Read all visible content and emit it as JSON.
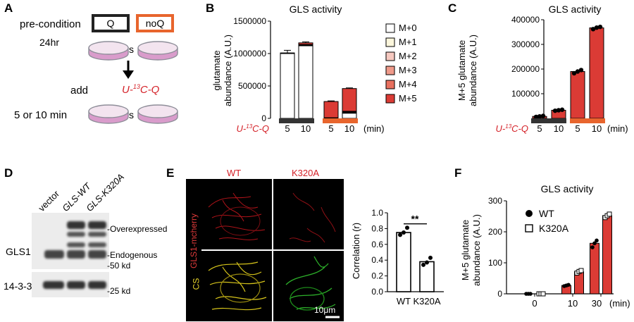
{
  "panels": {
    "A": "A",
    "B": "B",
    "C": "C",
    "D": "D",
    "E": "E",
    "F": "F"
  },
  "panelA": {
    "precondition": "pre-condition",
    "duration1": "24hr",
    "q_box": "Q",
    "noq_box": "noQ",
    "vs": "vs",
    "add": "add",
    "tracer": "U-13C-Q",
    "duration2": "5 or 10 min"
  },
  "panelB": {
    "title": "GLS activity",
    "ylabel_line1": "glutamate",
    "ylabel_line2": "abundance (A.U.)",
    "xrow_label": "U-13C-Q",
    "unit": "(min)",
    "colors": {
      "M+0": "#ffffff",
      "M+1": "#fbf6dc",
      "M+2": "#f6c9c0",
      "M+3": "#ef9a8a",
      "M+4": "#e8705f",
      "M+5": "#db3b35",
      "Q": "#333333",
      "noQ": "#e8652d"
    }
  },
  "panelC": {
    "title": "GLS activity",
    "ylabel_line1": "M+5 glutamate",
    "ylabel_line2": "abundance (A.U.)",
    "xrow_label": "U-13C-Q",
    "unit": "(min)"
  },
  "panelD": {
    "lanes": [
      "vector",
      "GLS-WT",
      "GLS-K320A"
    ],
    "row1": "GLS1",
    "row2": "14-3-3",
    "band_over": "-Overexpressed",
    "band_endo": "-Endogenous",
    "mw1": "-50 kd",
    "mw2": "-25 kd"
  },
  "panelE": {
    "col_wt": "WT",
    "col_k": "K320A",
    "row1": "GLS1-mcherry",
    "row2": "CS",
    "scale": "10μm",
    "ylabel": "Correlation (r)",
    "sig": "**"
  },
  "panelF": {
    "title": "GLS activity",
    "ylabel_line1": "M+5 glutamate",
    "ylabel_line2": "abundance (A.U.)",
    "unit": "(min)"
  },
  "chart_data": [
    {
      "id": "B",
      "type": "bar",
      "title": "GLS activity",
      "ylabel": "glutamate abundance (A.U.)",
      "xlabel": "U-13C-Q",
      "stacked": true,
      "categories": [
        "5",
        "10",
        "5",
        "10"
      ],
      "groups": [
        "Q",
        "Q",
        "noQ",
        "noQ"
      ],
      "ylim": [
        0,
        1500000
      ],
      "yticks": [
        0,
        500000,
        1000000,
        1500000
      ],
      "series": [
        {
          "name": "M+0",
          "values": [
            1000000,
            1120000,
            0,
            80000
          ]
        },
        {
          "name": "M+1",
          "values": [
            0,
            10000,
            0,
            10000
          ]
        },
        {
          "name": "M+2",
          "values": [
            0,
            10000,
            0,
            10000
          ]
        },
        {
          "name": "M+3",
          "values": [
            0,
            0,
            0,
            0
          ]
        },
        {
          "name": "M+4",
          "values": [
            0,
            0,
            10000,
            10000
          ]
        },
        {
          "name": "M+5",
          "values": [
            10000,
            25000,
            250000,
            350000
          ]
        }
      ],
      "errors": [
        40000,
        15000,
        10000,
        10000
      ]
    },
    {
      "id": "C",
      "type": "bar",
      "title": "GLS activity",
      "ylabel": "M+5 glutamate abundance (A.U.)",
      "xlabel": "U-13C-Q",
      "categories": [
        "5",
        "10",
        "5",
        "10"
      ],
      "groups": [
        "Q",
        "Q",
        "noQ",
        "noQ"
      ],
      "ylim": [
        0,
        400000
      ],
      "yticks": [
        0,
        100000,
        200000,
        300000,
        400000
      ],
      "values": [
        8000,
        33000,
        190000,
        367000
      ],
      "points": [
        [
          6000,
          8000,
          10000
        ],
        [
          31000,
          33000,
          35000
        ],
        [
          183000,
          190000,
          196000
        ],
        [
          362000,
          368000,
          371000
        ]
      ]
    },
    {
      "id": "E",
      "type": "bar",
      "ylabel": "Correlation (r)",
      "categories": [
        "WT",
        "K320A"
      ],
      "ylim": [
        0,
        1.0
      ],
      "yticks": [
        0.0,
        0.2,
        0.4,
        0.6,
        0.8,
        1.0
      ],
      "values": [
        0.75,
        0.38
      ],
      "points": [
        [
          0.72,
          0.75,
          0.81
        ],
        [
          0.34,
          0.37,
          0.43
        ]
      ],
      "annotation": "**"
    },
    {
      "id": "F",
      "type": "bar",
      "title": "GLS activity",
      "ylabel": "M+5 glutamate abundance (A.U.)",
      "categories": [
        "0",
        "10",
        "30"
      ],
      "xticks_shown": [
        "0",
        "10",
        "30"
      ],
      "ylim": [
        0,
        300
      ],
      "yticks": [
        0,
        100,
        200,
        300
      ],
      "series": [
        {
          "name": "WT",
          "values": [
            0,
            27,
            163
          ]
        },
        {
          "name": "K320A",
          "values": [
            0,
            71,
            252
          ]
        }
      ],
      "points": {
        "WT": [
          [
            0,
            0,
            0
          ],
          [
            25,
            27,
            29
          ],
          [
            150,
            163,
            172
          ]
        ],
        "K320A": [
          [
            0,
            0,
            0
          ],
          [
            67,
            72,
            75
          ],
          [
            246,
            252,
            257
          ]
        ]
      }
    }
  ]
}
